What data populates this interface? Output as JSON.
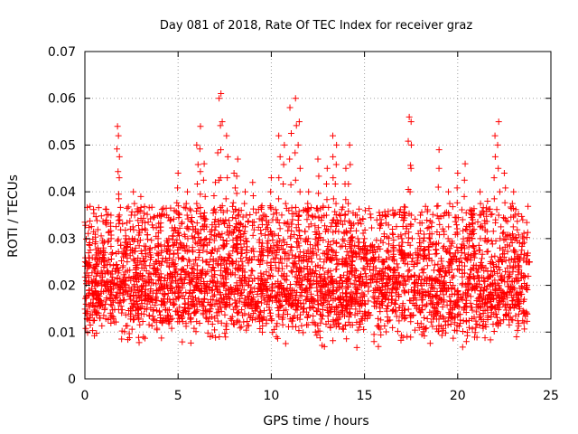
{
  "chart_data": {
    "type": "scatter",
    "title": "Day 081 of 2018, Rate Of TEC Index for receiver graz",
    "xlabel": "GPS time / hours",
    "ylabel": "ROTI / TECUs",
    "xlim": [
      0,
      25
    ],
    "ylim": [
      0,
      0.07
    ],
    "xticks": [
      0,
      5,
      10,
      15,
      20,
      25
    ],
    "xtick_labels": [
      "0",
      "5",
      "10",
      "15",
      "20",
      "25"
    ],
    "yticks": [
      0,
      0.01,
      0.02,
      0.03,
      0.04,
      0.05,
      0.06,
      0.07
    ],
    "ytick_labels": [
      "0",
      "0.01",
      "0.02",
      "0.03",
      "0.04",
      "0.05",
      "0.06",
      "0.07"
    ],
    "grid": true,
    "marker": "+",
    "marker_color": "#ff0000",
    "data_x_range": [
      0,
      23.8
    ],
    "series": [
      {
        "name": "ROTI",
        "x": [
          0.2,
          0.6,
          1.0,
          1.4,
          1.75,
          1.8,
          2.2,
          2.6,
          3.0,
          3.5,
          4.0,
          4.5,
          4.8,
          5.0,
          5.5,
          6.0,
          6.2,
          6.4,
          7.0,
          7.2,
          7.3,
          7.6,
          8.0,
          8.2,
          8.6,
          9.0,
          9.5,
          10.0,
          10.4,
          10.7,
          11.0,
          11.3,
          11.5,
          12.0,
          12.5,
          13.0,
          13.3,
          13.5,
          14.0,
          14.2,
          14.6,
          15.0,
          15.5,
          16.0,
          16.5,
          17.0,
          17.4,
          17.5,
          18.0,
          18.5,
          19.0,
          19.5,
          20.0,
          20.4,
          20.8,
          21.2,
          21.6,
          22.0,
          22.2,
          22.5,
          23.0,
          23.5,
          23.8
        ],
        "y": [
          0.024,
          0.022,
          0.028,
          0.035,
          0.054,
          0.052,
          0.03,
          0.04,
          0.039,
          0.028,
          0.035,
          0.03,
          0.036,
          0.044,
          0.04,
          0.05,
          0.054,
          0.046,
          0.042,
          0.06,
          0.061,
          0.052,
          0.044,
          0.047,
          0.04,
          0.042,
          0.037,
          0.043,
          0.052,
          0.05,
          0.058,
          0.06,
          0.055,
          0.04,
          0.047,
          0.045,
          0.052,
          0.05,
          0.045,
          0.05,
          0.035,
          0.03,
          0.026,
          0.025,
          0.032,
          0.03,
          0.056,
          0.055,
          0.035,
          0.03,
          0.049,
          0.04,
          0.044,
          0.046,
          0.035,
          0.04,
          0.038,
          0.052,
          0.055,
          0.044,
          0.04,
          0.03,
          0.025
        ]
      }
    ],
    "band": {
      "description": "dense cloud of points",
      "y_low": 0.005,
      "y_high": 0.025,
      "y_center": 0.015
    }
  }
}
